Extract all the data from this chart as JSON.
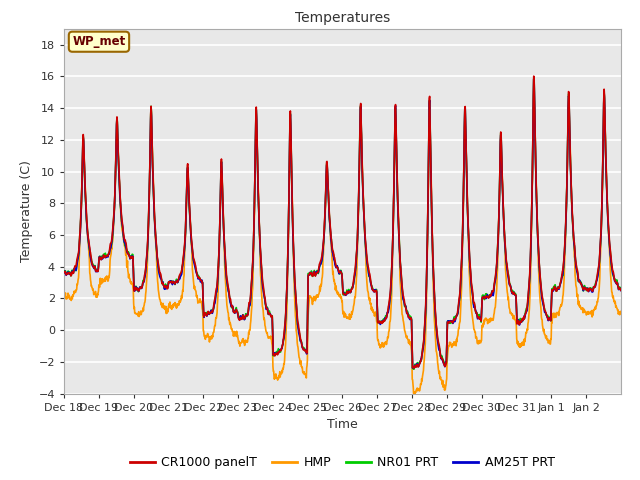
{
  "title": "Temperatures",
  "xlabel": "Time",
  "ylabel": "Temperature (C)",
  "ylim": [
    -4,
    19
  ],
  "yticks": [
    -4,
    -2,
    0,
    2,
    4,
    6,
    8,
    10,
    12,
    14,
    16,
    18
  ],
  "fig_bg_color": "#ffffff",
  "plot_bg_color": "#e8e8e8",
  "grid_color": "#ffffff",
  "legend_label": "WP_met",
  "legend_box_color": "#ffffcc",
  "legend_box_edge": "#996600",
  "series_colors": {
    "CR1000 panelT": "#cc0000",
    "HMP": "#ff9900",
    "NR01 PRT": "#00cc00",
    "AM25T PRT": "#0000cc"
  },
  "x_tick_labels": [
    "Dec 18",
    "Dec 19",
    "Dec 20",
    "Dec 21",
    "Dec 22",
    "Dec 23",
    "Dec 24",
    "Dec 25",
    "Dec 26",
    "Dec 27",
    "Dec 28",
    "Dec 29",
    "Dec 30",
    "Dec 31",
    "Jan 1",
    "Jan 2"
  ],
  "figsize": [
    6.4,
    4.8
  ],
  "dpi": 100
}
